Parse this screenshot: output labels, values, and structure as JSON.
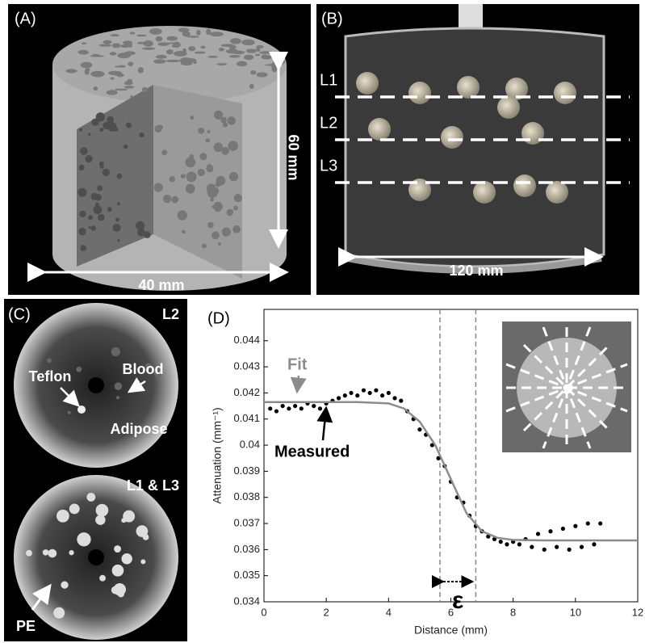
{
  "panels": {
    "a": {
      "label": "(A)",
      "height_label": "60 mm",
      "width_label": "40 mm"
    },
    "b": {
      "label": "(B)",
      "lines": [
        "L1",
        "L2",
        "L3"
      ],
      "width_label": "120 mm"
    },
    "c": {
      "label": "(C)",
      "top": {
        "label": "L2",
        "annotations": [
          "Teflon",
          "Blood",
          "Adipose"
        ]
      },
      "bottom": {
        "label": "L1 & L3",
        "annotations": [
          "PE"
        ]
      }
    },
    "d": {
      "label": "(D)"
    }
  },
  "chart_data": {
    "type": "scatter",
    "x_label": "Distance (mm)",
    "y_label": "Attenuation (mm⁻¹)",
    "xlim": [
      0,
      12
    ],
    "xticks": [
      0,
      2,
      4,
      6,
      8,
      10,
      12
    ],
    "ylim": [
      0.034,
      0.0452
    ],
    "yticks": [
      0.034,
      0.035,
      0.036,
      0.037,
      0.038,
      0.039,
      0.04,
      0.041,
      0.042,
      0.043,
      0.044
    ],
    "annotations": {
      "fit": "Fit",
      "measured": "Measured",
      "epsilon": "ε"
    },
    "epsilon_bounds": [
      5.65,
      6.8
    ],
    "series": [
      {
        "name": "Measured",
        "style": "points",
        "color": "#000000",
        "x": [
          0.2,
          0.4,
          0.6,
          0.8,
          1.0,
          1.2,
          1.4,
          1.6,
          1.8,
          2.0,
          2.2,
          2.4,
          2.6,
          2.8,
          3.0,
          3.2,
          3.4,
          3.6,
          3.8,
          4.0,
          4.2,
          4.4,
          4.6,
          4.8,
          5.0,
          5.2,
          5.4,
          5.6,
          5.8,
          6.0,
          6.2,
          6.4,
          6.6,
          6.8,
          7.0,
          7.2,
          7.4,
          7.6,
          7.8,
          8.0,
          8.2,
          8.4,
          8.6,
          8.8,
          9.0,
          9.2,
          9.4,
          9.6,
          9.8,
          10.0,
          10.2,
          10.4,
          10.6,
          10.8
        ],
        "values": [
          0.0414,
          0.0413,
          0.0415,
          0.0414,
          0.0415,
          0.0414,
          0.0416,
          0.0415,
          0.0414,
          0.0416,
          0.0417,
          0.0418,
          0.0419,
          0.042,
          0.0419,
          0.0421,
          0.042,
          0.0421,
          0.0419,
          0.042,
          0.0418,
          0.0417,
          0.0413,
          0.041,
          0.0406,
          0.0404,
          0.04,
          0.0395,
          0.0392,
          0.0386,
          0.038,
          0.0378,
          0.0373,
          0.0369,
          0.0367,
          0.0365,
          0.0364,
          0.0363,
          0.0362,
          0.0363,
          0.0362,
          0.0364,
          0.0361,
          0.0366,
          0.036,
          0.0367,
          0.0361,
          0.0368,
          0.036,
          0.0369,
          0.0361,
          0.037,
          0.0362,
          0.037
        ]
      },
      {
        "name": "Fit",
        "style": "line",
        "color": "#8c8c8c",
        "x": [
          0,
          1,
          2,
          3,
          4,
          4.5,
          5,
          5.5,
          6,
          6.5,
          7,
          7.5,
          8,
          9,
          10,
          11,
          12
        ],
        "values": [
          0.04165,
          0.04165,
          0.04165,
          0.04165,
          0.0416,
          0.0414,
          0.0409,
          0.04,
          0.0387,
          0.0374,
          0.0367,
          0.03645,
          0.03637,
          0.03635,
          0.03635,
          0.03635,
          0.03635
        ]
      }
    ]
  }
}
